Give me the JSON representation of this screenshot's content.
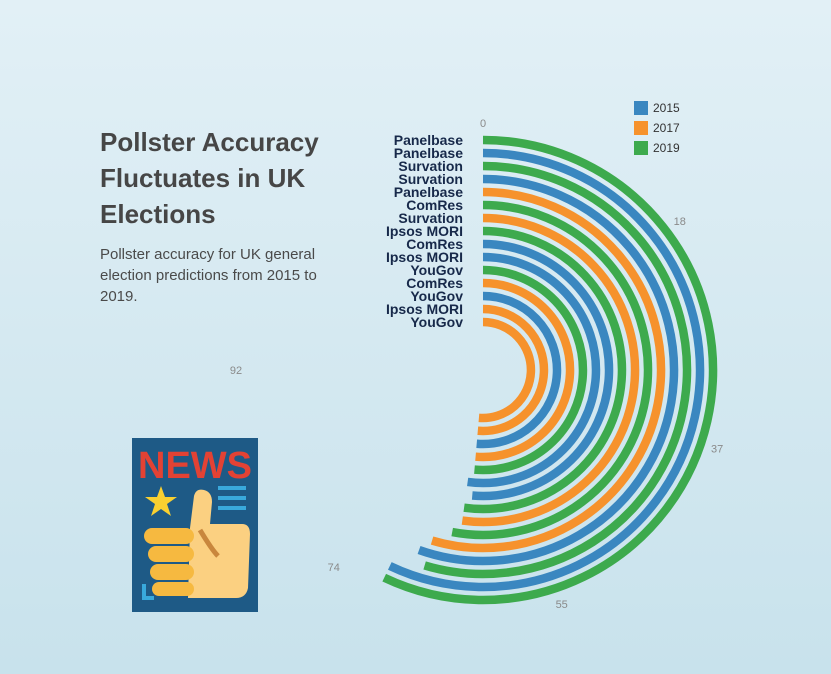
{
  "title": "Pollster Accuracy Fluctuates in UK Elections",
  "subtitle": "Pollster accuracy for UK general election predictions from 2015 to 2019.",
  "illustration": {
    "headline": "NEWS",
    "icon": "newspaper-thumbs-up-icon"
  },
  "colors": {
    "2015": "#3a87c0",
    "2017": "#f6922c",
    "2019": "#3daa4d",
    "label": "#17294a",
    "axis_text": "#8a8a8a"
  },
  "chart_data": {
    "type": "radial-bar",
    "angular_ticks": [
      0,
      18,
      37,
      55,
      74,
      92
    ],
    "axis_max": 92,
    "legend": {
      "entries": [
        "2015",
        "2017",
        "2019"
      ],
      "position": "top-right"
    },
    "bars": [
      {
        "label": "Panelbase",
        "year": "2019",
        "value": 70
      },
      {
        "label": "Panelbase",
        "year": "2015",
        "value": 70
      },
      {
        "label": "Survation",
        "year": "2019",
        "value": 67
      },
      {
        "label": "Survation",
        "year": "2015",
        "value": 68
      },
      {
        "label": "Panelbase",
        "year": "2017",
        "value": 67
      },
      {
        "label": "ComRes",
        "year": "2019",
        "value": 65
      },
      {
        "label": "Survation",
        "year": "2017",
        "value": 64
      },
      {
        "label": "Ipsos MORI",
        "year": "2019",
        "value": 64
      },
      {
        "label": "ComRes",
        "year": "2015",
        "value": 63
      },
      {
        "label": "Ipsos MORI",
        "year": "2015",
        "value": 64
      },
      {
        "label": "YouGov",
        "year": "2019",
        "value": 63
      },
      {
        "label": "ComRes",
        "year": "2017",
        "value": 63
      },
      {
        "label": "YouGov",
        "year": "2015",
        "value": 63
      },
      {
        "label": "Ipsos MORI",
        "year": "2017",
        "value": 63
      },
      {
        "label": "YouGov",
        "year": "2017",
        "value": 63
      }
    ]
  }
}
